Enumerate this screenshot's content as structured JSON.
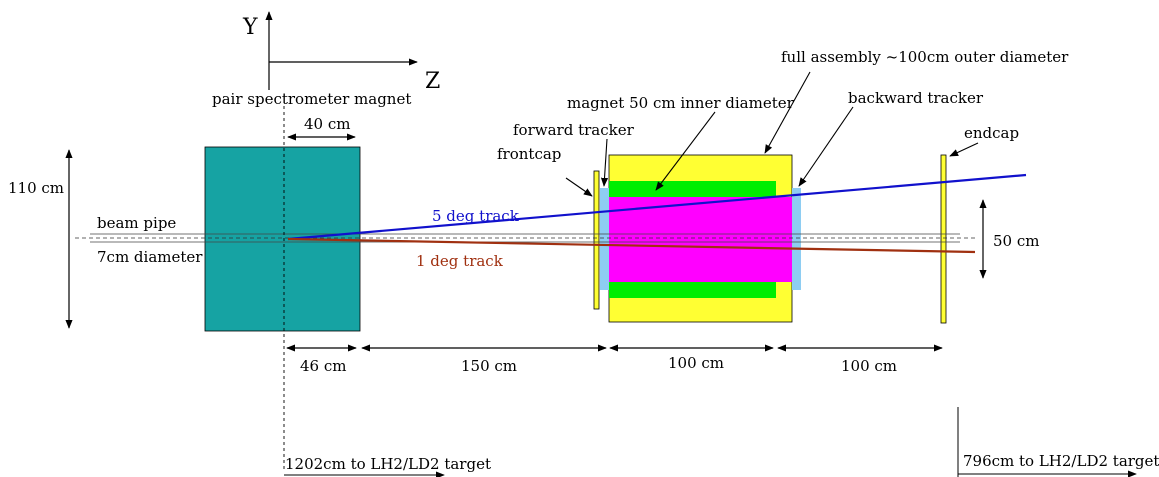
{
  "axes": {
    "y_label": "Y",
    "z_label": "Z"
  },
  "labels": {
    "pair_magnet": "pair spectrometer magnet",
    "beam_pipe": "beam pipe",
    "pipe_diameter": "7cm diameter",
    "height_110": "110 cm",
    "width_40": "40 cm",
    "track_5deg": "5 deg track",
    "track_1deg": "1 deg track",
    "forward_tracker": "forward tracker",
    "frontcap": "frontcap",
    "magnet_inner": "magnet 50 cm inner diameter",
    "full_assembly": "full assembly ~100cm outer diameter",
    "backward_tracker": "backward tracker",
    "endcap": "endcap",
    "dim_50": "50 cm",
    "dim_46": "46 cm",
    "dim_150": "150 cm",
    "dim_100a": "100 cm",
    "dim_100b": "100 cm",
    "target_1202": "1202cm to LH2/LD2 target",
    "target_796": "796cm to LH2/LD2 target"
  },
  "colors": {
    "pair_magnet": "#16a3a3",
    "outer_yoke": "#ffff33",
    "coil": "#00ee00",
    "inner_magnet": "#ff00ff",
    "tracker": "#8ecdf2",
    "cap": "#ffff33",
    "track_5deg": "#1111cc",
    "track_1deg": "#a03010"
  }
}
